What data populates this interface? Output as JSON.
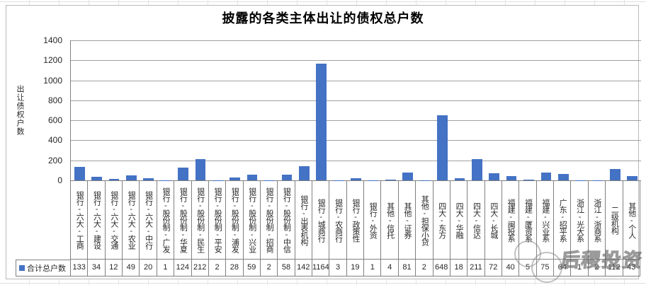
{
  "chart_data": {
    "type": "bar",
    "title": "披露的各类主体出让的债权总户数",
    "xlabel": "",
    "ylabel": "出让债权户数",
    "ylim": [
      0,
      1400
    ],
    "y_tick_step": 200,
    "y_tick_labels": [
      "0",
      "200",
      "400",
      "600",
      "800",
      "1000",
      "1200",
      "1400"
    ],
    "grid": true,
    "legend_position": "bottom-table",
    "series_name": "合计总户数",
    "bar_color": "#4472c4",
    "categories": [
      "银行-六大-工商",
      "银行-六大-建设",
      "银行-六大-交通",
      "银行-六大-农业",
      "银行-六大-中行",
      "银行-股份制-广发",
      "银行-股份制-华夏",
      "银行-股份制-民生",
      "银行-股份制-平安",
      "银行-股份制-浦发",
      "银行-股份制-兴业",
      "银行-股份制-招商",
      "银行-股份制-中信",
      "银行-出表机构",
      "银行-城商行",
      "银行-农商行",
      "银行-政策性",
      "银行-外资",
      "其他-信托",
      "其他-证券",
      "其他-担保小贷",
      "四大-东方",
      "四大-华融",
      "四大-信达",
      "四大-长城",
      "福建-闽投系",
      "福建-厦资系",
      "福建-兴业系",
      "广东-招平系",
      "浙江-光大系",
      "浙江-浙商系",
      "二级机构",
      "其他-个人"
    ],
    "values": [
      133,
      34,
      12,
      49,
      20,
      1,
      124,
      212,
      2,
      28,
      59,
      2,
      58,
      142,
      1164,
      3,
      19,
      1,
      4,
      81,
      2,
      648,
      18,
      211,
      72,
      40,
      5,
      75,
      64,
      1,
      2,
      112,
      43
    ]
  },
  "table": {
    "row_header": "合计总户数"
  },
  "watermark": {
    "text": "后稷投资"
  },
  "colors": {
    "bar": "#4472c4",
    "gridline": "#a0a0a0",
    "axis": "#808080",
    "legend_marker": "#4472c4"
  }
}
